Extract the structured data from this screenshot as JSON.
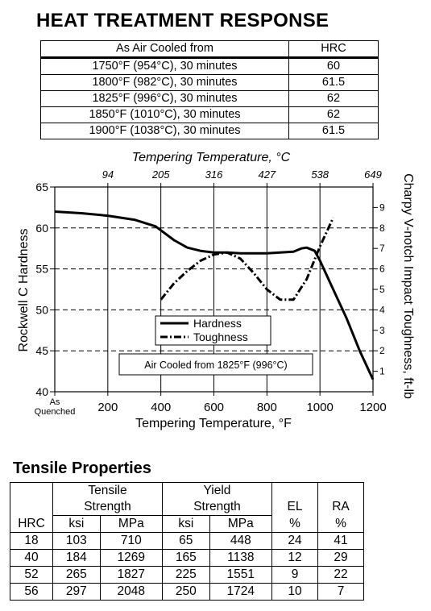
{
  "heat_treatment": {
    "title": "HEAT TREATMENT RESPONSE",
    "col_condition": "As Air Cooled from",
    "col_hrc": "HRC",
    "rows": [
      {
        "condition": "1750°F   (954°C),   30 minutes",
        "hrc": "60"
      },
      {
        "condition": "1800°F   (982°C),   30 minutes",
        "hrc": "61.5"
      },
      {
        "condition": "1825°F   (996°C),   30 minutes",
        "hrc": "62"
      },
      {
        "condition": "1850°F   (1010°C),  30 minutes",
        "hrc": "62"
      },
      {
        "condition": "1900°F   (1038°C),  30 minutes",
        "hrc": "61.5"
      }
    ]
  },
  "chart_data": {
    "type": "line",
    "top_axis_label": "Tempering Temperature, °C",
    "top_ticks": [
      "94",
      "205",
      "316",
      "427",
      "538",
      "649"
    ],
    "xlabel": "Tempering Temperature, °F",
    "x_ticks": [
      "As Quenched",
      "200",
      "400",
      "600",
      "800",
      "1000",
      "1200"
    ],
    "xlim": [
      0,
      1200
    ],
    "ylabel": "Rockwell C Hardness",
    "ylim": [
      40,
      65
    ],
    "y_ticks": [
      "40",
      "45",
      "50",
      "55",
      "60",
      "65"
    ],
    "y2label": "Charpy V-notch Impact Toughness, ft-lb",
    "y2lim": [
      0,
      10
    ],
    "y2_ticks": [
      "1",
      "2",
      "3",
      "4",
      "5",
      "6",
      "7",
      "8",
      "9"
    ],
    "grid": "horizontal dashed, vertical solid",
    "legend_position": "center",
    "annotation": "Air Cooled from 1825°F (996°C)",
    "series": [
      {
        "name": "Hardness",
        "axis": "left",
        "style": "solid",
        "x": [
          0,
          100,
          200,
          300,
          380,
          450,
          500,
          550,
          600,
          650,
          700,
          750,
          800,
          850,
          900,
          930,
          950,
          980,
          1000,
          1050,
          1100,
          1150,
          1200
        ],
        "y": [
          62,
          61.8,
          61.5,
          61,
          60.2,
          58.5,
          57.6,
          57.2,
          57,
          57,
          56.9,
          56.9,
          56.9,
          57,
          57.1,
          57.5,
          57.6,
          57.2,
          56,
          52.5,
          49,
          45,
          41.5
        ]
      },
      {
        "name": "Toughness",
        "axis": "right",
        "style": "dash-dot",
        "x": [
          400,
          450,
          500,
          550,
          600,
          650,
          700,
          750,
          800,
          850,
          900,
          950,
          1000,
          1050
        ],
        "y": [
          4.5,
          5.3,
          5.9,
          6.4,
          6.7,
          6.8,
          6.5,
          5.8,
          5.0,
          4.5,
          4.5,
          5.5,
          7.1,
          8.5
        ]
      }
    ]
  },
  "tensile": {
    "title": "Tensile Properties",
    "h_tensile_1": "Tensile",
    "h_tensile_2": "Strength",
    "h_yield_1": "Yield",
    "h_yield_2": "Strength",
    "h_el": "EL",
    "h_ra": "RA",
    "h_hrc": "HRC",
    "h_ksi": "ksi",
    "h_mpa": "MPa",
    "h_ksi2": "ksi",
    "h_mpa2": "MPa",
    "h_pct": "%",
    "h_pct2": "%",
    "rows": [
      [
        "18",
        "103",
        "710",
        "65",
        "448",
        "24",
        "41"
      ],
      [
        "40",
        "184",
        "1269",
        "165",
        "1138",
        "12",
        "29"
      ],
      [
        "52",
        "265",
        "1827",
        "225",
        "1551",
        "9",
        "22"
      ],
      [
        "56",
        "297",
        "2048",
        "250",
        "1724",
        "10",
        "7"
      ]
    ]
  }
}
